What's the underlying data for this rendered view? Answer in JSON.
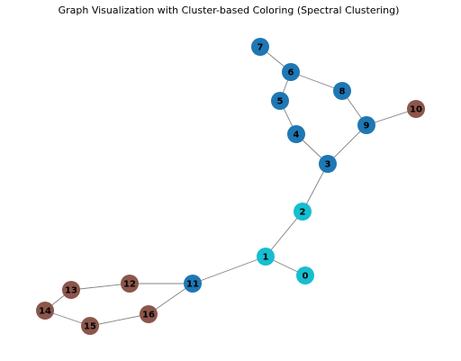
{
  "figure": {
    "title": "Graph Visualization with Cluster-based Coloring (Spectral Clustering)"
  },
  "colors": {
    "cluster_blue": "#1f77b4",
    "cluster_cyan": "#17becf",
    "cluster_brown": "#8c564b",
    "edge": "#808080",
    "background": "#ffffff"
  },
  "graph": {
    "nodes": [
      {
        "id": "0",
        "label": "0",
        "cluster": "cyan"
      },
      {
        "id": "1",
        "label": "1",
        "cluster": "cyan"
      },
      {
        "id": "2",
        "label": "2",
        "cluster": "cyan"
      },
      {
        "id": "3",
        "label": "3",
        "cluster": "blue"
      },
      {
        "id": "4",
        "label": "4",
        "cluster": "blue"
      },
      {
        "id": "5",
        "label": "5",
        "cluster": "blue"
      },
      {
        "id": "6",
        "label": "6",
        "cluster": "blue"
      },
      {
        "id": "7",
        "label": "7",
        "cluster": "blue"
      },
      {
        "id": "8",
        "label": "8",
        "cluster": "blue"
      },
      {
        "id": "9",
        "label": "9",
        "cluster": "blue"
      },
      {
        "id": "10",
        "label": "10",
        "cluster": "brown"
      },
      {
        "id": "11",
        "label": "11",
        "cluster": "blue"
      },
      {
        "id": "12",
        "label": "12",
        "cluster": "brown"
      },
      {
        "id": "13",
        "label": "13",
        "cluster": "brown"
      },
      {
        "id": "14",
        "label": "14",
        "cluster": "brown"
      },
      {
        "id": "15",
        "label": "15",
        "cluster": "brown"
      },
      {
        "id": "16",
        "label": "16",
        "cluster": "brown"
      }
    ],
    "edges": [
      [
        "0",
        "1"
      ],
      [
        "1",
        "2"
      ],
      [
        "2",
        "3"
      ],
      [
        "3",
        "4"
      ],
      [
        "4",
        "5"
      ],
      [
        "5",
        "6"
      ],
      [
        "6",
        "7"
      ],
      [
        "6",
        "8"
      ],
      [
        "8",
        "9"
      ],
      [
        "9",
        "3"
      ],
      [
        "9",
        "10"
      ],
      [
        "1",
        "11"
      ],
      [
        "11",
        "12"
      ],
      [
        "12",
        "13"
      ],
      [
        "13",
        "14"
      ],
      [
        "14",
        "15"
      ],
      [
        "15",
        "16"
      ],
      [
        "16",
        "11"
      ]
    ]
  }
}
